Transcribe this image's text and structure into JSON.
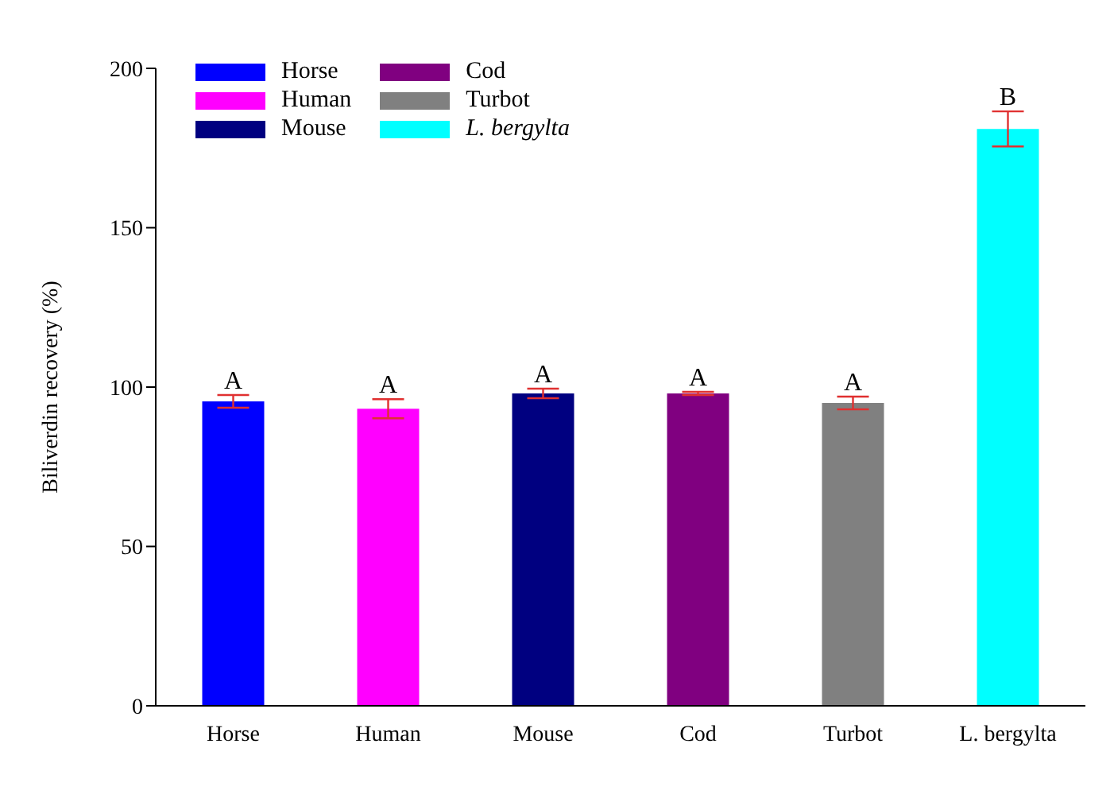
{
  "chart_data": {
    "type": "bar",
    "ylabel": "Biliverdin recovery (%)",
    "categories": [
      "Horse",
      "Human",
      "Mouse",
      "Cod",
      "Turbot",
      "L. bergylta"
    ],
    "values": [
      95.5,
      93.2,
      98,
      98,
      95,
      181
    ],
    "errors": [
      2,
      3,
      1.5,
      0.5,
      2,
      5.5
    ],
    "colors": [
      "#0000ff",
      "#ff00ff",
      "#000080",
      "#800080",
      "#808080",
      "#00ffff"
    ],
    "ylim": [
      0,
      200
    ],
    "yticks": [
      0,
      50,
      100,
      150,
      200
    ],
    "grid": false,
    "annotations": [
      {
        "text": "A",
        "x": "Horse",
        "y": 97.5
      },
      {
        "text": "A",
        "x": "Human",
        "y": 96.2
      },
      {
        "text": "A",
        "x": "Mouse",
        "y": 99.5
      },
      {
        "text": "A",
        "x": "Cod",
        "y": 98.5
      },
      {
        "text": "A",
        "x": "Turbot",
        "y": 97
      },
      {
        "text": "B",
        "x": "L. bergylta",
        "y": 186.5
      }
    ]
  }
}
